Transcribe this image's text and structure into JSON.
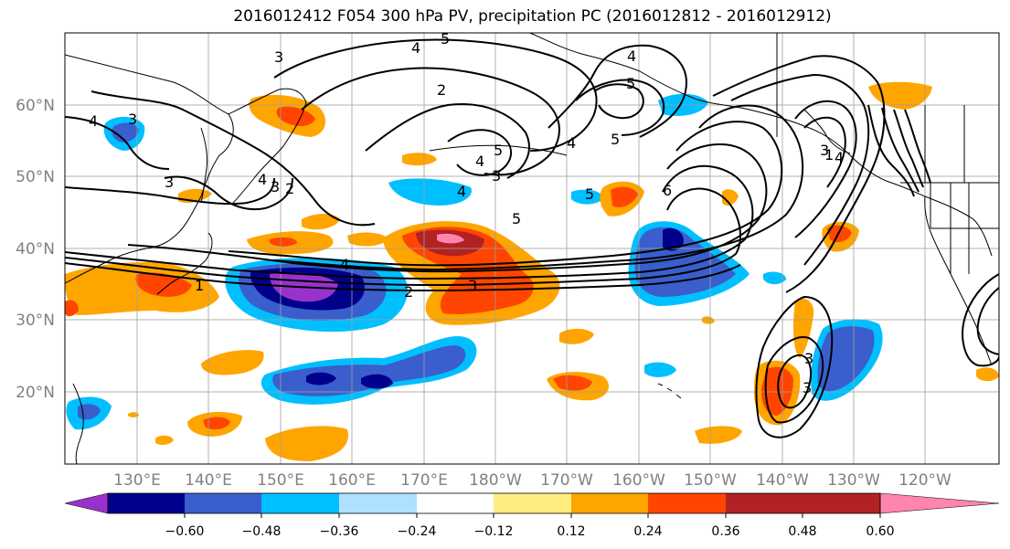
{
  "title": "2016012412 F054 300 hPa PV, precipitation PC (2016012812 - 2016012912)",
  "lat_labels": [
    "20°N",
    "30°N",
    "40°N",
    "50°N",
    "60°N"
  ],
  "lon_labels": [
    "130°E",
    "140°E",
    "150°E",
    "160°E",
    "170°E",
    "180°W",
    "170°W",
    "160°W",
    "150°W",
    "140°W",
    "130°W",
    "120°W"
  ],
  "colorbar": {
    "colors": [
      "#9932cc",
      "#00008b",
      "#3a5ecc",
      "#00bfff",
      "#b0e0ff",
      "#ffffff",
      "#ffec80",
      "#ffa500",
      "#ff4500",
      "#b22222",
      "#ff85b0"
    ],
    "labels": [
      "−0.60",
      "−0.48",
      "−0.36",
      "−0.24",
      "−0.12",
      "0.12",
      "0.24",
      "0.36",
      "0.48",
      "0.60"
    ]
  },
  "contour_labels": [
    "4",
    "5",
    "4",
    "3",
    "4",
    "5",
    "3",
    "2",
    "4",
    "3",
    "4",
    "5",
    "3",
    "4",
    "5",
    "6",
    "4",
    "5",
    "3",
    "2",
    "4",
    "3",
    "1",
    "2",
    "3",
    "4",
    "5",
    "3",
    "3",
    "1"
  ],
  "map": {
    "extent": {
      "lon": [
        120,
        250.4
      ],
      "lat": [
        10,
        70
      ]
    },
    "colors": {
      "land_line": "#000000",
      "grid": "#a0a0a0",
      "contour": "#000000"
    }
  }
}
